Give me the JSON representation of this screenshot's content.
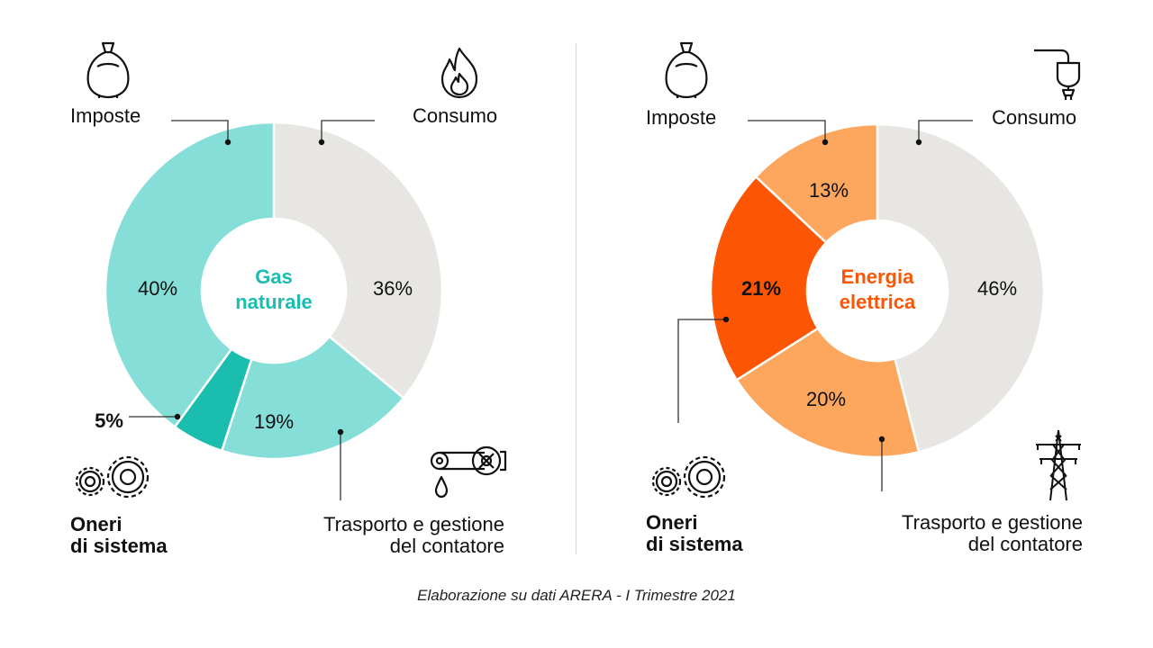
{
  "source_note": "Elaborazione su dati ARERA - I Trimestre 2021",
  "chart_data": [
    {
      "type": "pie",
      "center_title": [
        "Gas",
        "naturale"
      ],
      "slices": [
        {
          "label": "Consumo",
          "value": 36,
          "value_text": "36%",
          "color": "#E8E6E2",
          "emphasis": false
        },
        {
          "label": "Trasporto e gestione del contatore",
          "value": 19,
          "value_text": "19%",
          "color": "#85DFD8",
          "emphasis": false
        },
        {
          "label": "Oneri di sistema",
          "value": 5,
          "value_text": "5%",
          "color": "#1BBDAE",
          "emphasis": true
        },
        {
          "label": "Imposte",
          "value": 40,
          "value_text": "40%",
          "color": "#85DFD8",
          "emphasis": false
        }
      ],
      "accent": "#1BBDAE"
    },
    {
      "type": "pie",
      "center_title": [
        "Energia",
        "elettrica"
      ],
      "slices": [
        {
          "label": "Consumo",
          "value": 46,
          "value_text": "46%",
          "color": "#E8E6E2",
          "emphasis": false
        },
        {
          "label": "Trasporto e gestione del contatore",
          "value": 20,
          "value_text": "20%",
          "color": "#FCA65E",
          "emphasis": false
        },
        {
          "label": "Oneri di sistema",
          "value": 21,
          "value_text": "21%",
          "color": "#FC5604",
          "emphasis": true
        },
        {
          "label": "Imposte",
          "value": 13,
          "value_text": "13%",
          "color": "#FCA65E",
          "emphasis": false
        }
      ],
      "accent": "#FC5604"
    }
  ],
  "labels": {
    "gas": {
      "imposte": "Imposte",
      "consumo": "Consumo",
      "oneri_1": "Oneri",
      "oneri_2": "di sistema",
      "trasporto_1": "Trasporto e gestione",
      "trasporto_2": "del contatore"
    },
    "ele": {
      "imposte": "Imposte",
      "consumo": "Consumo",
      "oneri_1": "Oneri",
      "oneri_2": "di sistema",
      "trasporto_1": "Trasporto e gestione",
      "trasporto_2": "del contatore"
    }
  },
  "icons": {
    "gas_imposte": "money-bag-icon",
    "gas_consumo": "flame-icon",
    "gas_oneri": "gears-icon",
    "gas_trasporto": "pipeline-valve-icon",
    "ele_imposte": "money-bag-icon",
    "ele_consumo": "plug-icon",
    "ele_oneri": "gears-icon",
    "ele_trasporto": "power-pylon-icon"
  }
}
